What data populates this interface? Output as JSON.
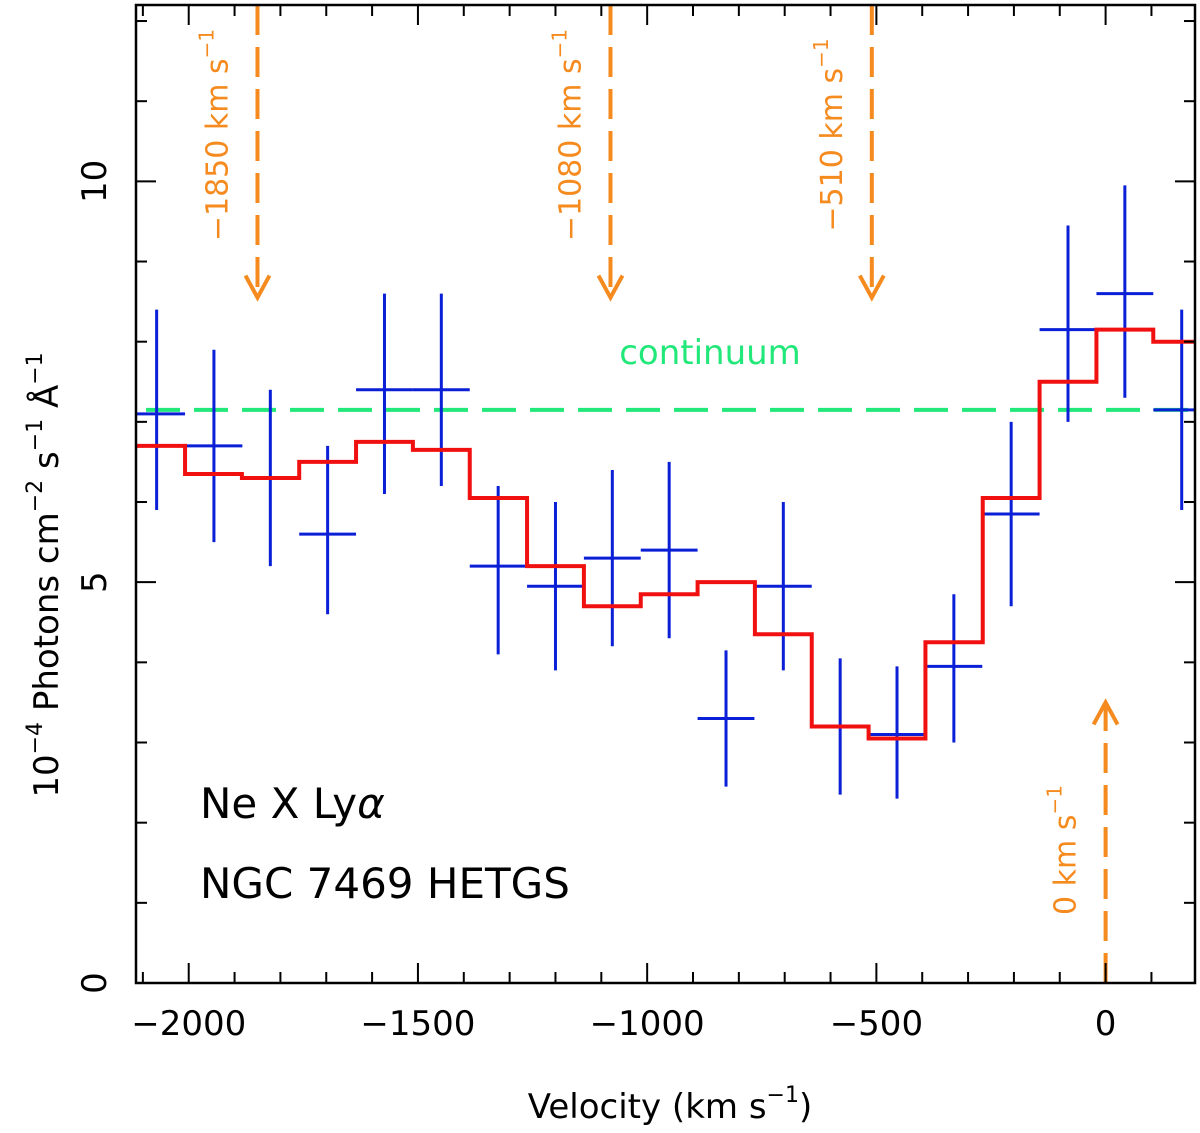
{
  "chart_data": {
    "type": "line",
    "title": "",
    "xlabel": "Velocity (km s",
    "xlabel_sup": "−1",
    "xlabel_close": ")",
    "ylabel_prefix": "10",
    "ylabel_sup1": "−4",
    "ylabel_mid1": " Photons cm",
    "ylabel_sup2": "−2",
    "ylabel_mid2": " s",
    "ylabel_sup3": "−1",
    "ylabel_mid3": " Å",
    "ylabel_sup4": "−1",
    "xlim": [
      -2115,
      195
    ],
    "ylim": [
      0,
      12.2
    ],
    "x_ticks": [
      -2000,
      -1500,
      -1000,
      -500,
      0
    ],
    "x_tick_labels": [
      "−2000",
      "−1500",
      "−1000",
      "−500",
      "0"
    ],
    "x_minor_step": 100,
    "y_ticks": [
      0,
      5,
      10
    ],
    "y_tick_labels": [
      "0",
      "5",
      "10"
    ],
    "y_minor_step": 1,
    "series": [
      {
        "name": "data",
        "color": "#0a1fd6",
        "points": [
          {
            "x": -2070,
            "xerr": 62,
            "y": 7.1,
            "ylo": 5.9,
            "yhi": 8.4
          },
          {
            "x": -1945,
            "xerr": 62,
            "y": 6.7,
            "ylo": 5.5,
            "yhi": 7.9
          },
          {
            "x": -1822,
            "xerr": 62,
            "y": 6.3,
            "ylo": 5.2,
            "yhi": 7.4
          },
          {
            "x": -1697,
            "xerr": 62,
            "y": 5.6,
            "ylo": 4.6,
            "yhi": 6.7
          },
          {
            "x": -1573,
            "xerr": 62,
            "y": 7.4,
            "ylo": 6.1,
            "yhi": 8.6
          },
          {
            "x": -1449,
            "xerr": 62,
            "y": 7.4,
            "ylo": 6.2,
            "yhi": 8.6
          },
          {
            "x": -1325,
            "xerr": 62,
            "y": 5.2,
            "ylo": 4.1,
            "yhi": 6.2
          },
          {
            "x": -1200,
            "xerr": 62,
            "y": 4.95,
            "ylo": 3.9,
            "yhi": 6.0
          },
          {
            "x": -1076,
            "xerr": 62,
            "y": 5.3,
            "ylo": 4.2,
            "yhi": 6.4
          },
          {
            "x": -952,
            "xerr": 62,
            "y": 5.4,
            "ylo": 4.3,
            "yhi": 6.5
          },
          {
            "x": -828,
            "xerr": 62,
            "y": 3.3,
            "ylo": 2.45,
            "yhi": 4.15
          },
          {
            "x": -703,
            "xerr": 62,
            "y": 4.95,
            "ylo": 3.9,
            "yhi": 6.0
          },
          {
            "x": -579,
            "xerr": 62,
            "y": 3.2,
            "ylo": 2.35,
            "yhi": 4.05
          },
          {
            "x": -455,
            "xerr": 62,
            "y": 3.1,
            "ylo": 2.3,
            "yhi": 3.95
          },
          {
            "x": -331,
            "xerr": 62,
            "y": 3.95,
            "ylo": 3.0,
            "yhi": 4.85
          },
          {
            "x": -206,
            "xerr": 62,
            "y": 5.85,
            "ylo": 4.7,
            "yhi": 7.0
          },
          {
            "x": -82,
            "xerr": 62,
            "y": 8.15,
            "ylo": 7.0,
            "yhi": 9.45
          },
          {
            "x": 42,
            "xerr": 62,
            "y": 8.6,
            "ylo": 7.3,
            "yhi": 9.95
          },
          {
            "x": 166,
            "xerr": 62,
            "y": 7.15,
            "ylo": 5.9,
            "yhi": 8.4
          }
        ]
      },
      {
        "name": "model",
        "color": "#f01010",
        "step_edges": [
          -2132,
          -2008,
          -1884,
          -1759,
          -1635,
          -1511,
          -1387,
          -1262,
          -1138,
          -1014,
          -890,
          -765,
          -641,
          -517,
          -393,
          -268,
          -144,
          -20,
          104,
          228
        ],
        "values": [
          6.7,
          6.35,
          6.3,
          6.5,
          6.75,
          6.65,
          6.05,
          5.2,
          4.7,
          4.85,
          5.0,
          4.35,
          3.2,
          3.05,
          4.25,
          6.05,
          7.5,
          8.15,
          8.0
        ]
      },
      {
        "name": "continuum",
        "label": "continuum",
        "color": "#22e87a",
        "y": 7.15
      }
    ],
    "markers": [
      {
        "x": -1850,
        "label": "−1850 km s",
        "sup": "−1",
        "direction": "down",
        "from": 12.2,
        "to": 8.55
      },
      {
        "x": -1080,
        "label": "−1080 km s",
        "sup": "−1",
        "direction": "down",
        "from": 12.2,
        "to": 8.55
      },
      {
        "x": -510,
        "label": "−510 km s",
        "sup": "−1",
        "direction": "down",
        "from": 12.2,
        "to": 8.55
      },
      {
        "x": 0,
        "label": "0 km s",
        "sup": "−1",
        "direction": "up",
        "from": 0,
        "to": 3.5
      }
    ],
    "marker_color": "#f58a1e",
    "annotations": [
      "Ne X Ly",
      "α",
      "NGC 7469 HETGS"
    ]
  }
}
